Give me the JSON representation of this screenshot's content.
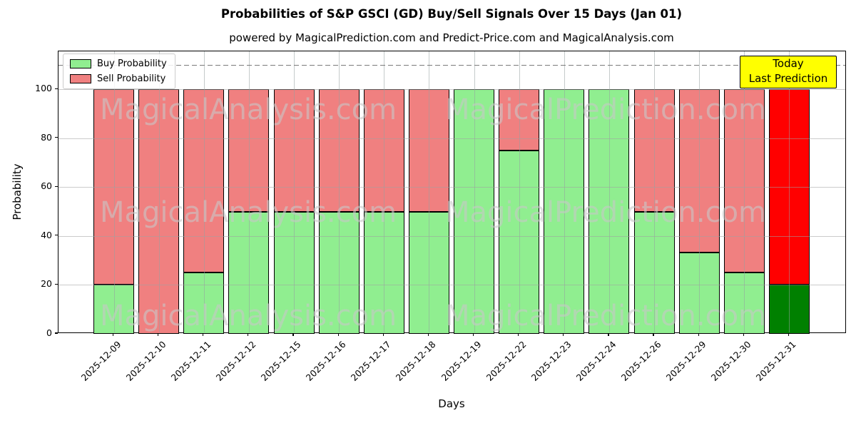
{
  "title": "Probabilities of S&P GSCI (GD) Buy/Sell Signals Over 15 Days (Jan 01)",
  "subtitle": "powered by MagicalPrediction.com and Predict-Price.com and MagicalAnalysis.com",
  "axes": {
    "xlabel": "Days",
    "ylabel": "Probability",
    "yticks": [
      0,
      20,
      40,
      60,
      80,
      100
    ],
    "ylim": [
      0,
      115.5
    ],
    "grid": true,
    "dashed_threshold_y": 110
  },
  "legend": {
    "position": "upper-left",
    "items": [
      {
        "label": "Buy Probability",
        "color": "#90ee90"
      },
      {
        "label": "Sell Probability",
        "color": "#f08080"
      }
    ]
  },
  "annotation": {
    "lines": [
      "Today",
      "Last Prediction"
    ],
    "bg_color": "#ffff00",
    "border_color": "#000000"
  },
  "watermarks": {
    "left_text": "MagicalAnalysis.com",
    "right_text": "MagicalPrediction.com"
  },
  "chart_data": {
    "type": "bar",
    "stacked": true,
    "title": "Probabilities of S&P GSCI (GD) Buy/Sell Signals Over 15 Days (Jan 01)",
    "xlabel": "Days",
    "ylabel": "Probability",
    "ylim": [
      0,
      115.5
    ],
    "grid": true,
    "legend_position": "upper-left",
    "categories": [
      "2025-12-09",
      "2025-12-10",
      "2025-12-11",
      "2025-12-12",
      "2025-12-15",
      "2025-12-16",
      "2025-12-17",
      "2025-12-18",
      "2025-12-19",
      "2025-12-22",
      "2025-12-23",
      "2025-12-24",
      "2025-12-26",
      "2025-12-29",
      "2025-12-30",
      "2025-12-31"
    ],
    "series": [
      {
        "name": "Buy Probability",
        "color": "#90ee90",
        "values": [
          20,
          0,
          25,
          50,
          50,
          50,
          50,
          50,
          100,
          75,
          100,
          100,
          50,
          33.33,
          25,
          20
        ]
      },
      {
        "name": "Sell Probability",
        "color": "#f08080",
        "values": [
          80,
          100,
          75,
          50,
          50,
          50,
          50,
          50,
          0,
          25,
          0,
          0,
          50,
          66.67,
          75,
          80
        ]
      }
    ],
    "today_index": 15,
    "today_colors": {
      "buy": "#008000",
      "sell": "#ff0000"
    },
    "bar_edge_color": "#000000"
  }
}
